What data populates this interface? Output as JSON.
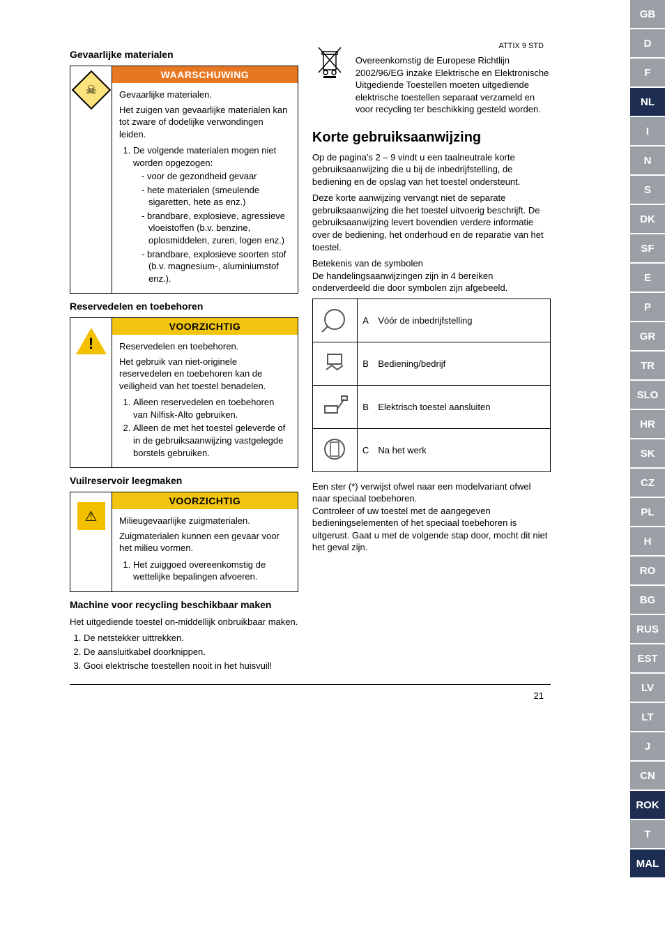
{
  "doc_header": "ATTIX 9 STD",
  "page_number": "21",
  "colors": {
    "warning_header_bg": "#e87722",
    "caution_header_bg": "#f1c40f",
    "caution_header_text": "#000000",
    "lang_inactive_bg": "#9aa0a6",
    "lang_active_bg": "#1d2e52",
    "lang_mal_bg": "#1d2e52",
    "lang_rok_bg": "#1d2e52"
  },
  "left": {
    "sec1_title": "Gevaarlijke materialen",
    "warn1": {
      "header": "WAARSCHUWING",
      "subtitle": "Gevaarlijke materialen.",
      "lead": "Het zuigen van gevaarlijke materialen kan tot zware of dodelijke verwondingen leiden.",
      "item1_intro": "De volgende materialen mogen niet worden opgezogen:",
      "bullets": [
        "voor de gezondheid gevaar",
        "hete materialen (smeulende sigaretten, hete as enz.)",
        "brandbare, explosieve, agressieve vloeistoffen (b.v. benzine, oplosmiddelen, zuren, logen enz.)",
        "brandbare, explosieve soorten stof (b.v. magnesium-, aluminiumstof enz.)."
      ]
    },
    "sec2_title": "Reservedelen en toebehoren",
    "warn2": {
      "header": "VOORZICHTIG",
      "subtitle": "Reservedelen en toebehoren.",
      "lead": "Het gebruik van niet-originele reservedelen en toebehoren kan de veiligheid van het toestel benadelen.",
      "items": [
        "Alleen reservedelen en toebehoren van Nilfisk-Alto gebruiken.",
        "Alleen de met het toestel geleverde of in de gebruiksaanwijzing vastgelegde borstels gebruiken."
      ]
    },
    "sec3_title": "Vuilreservoir leegmaken",
    "warn3": {
      "header": "VOORZICHTIG",
      "subtitle": "Milieugevaarlijke zuigmaterialen.",
      "lead": "Zuigmaterialen kunnen een gevaar voor het milieu vormen.",
      "items": [
        "Het zuiggoed overeenkomstig de wettelijke bepalingen afvoeren."
      ]
    },
    "sec4_title": "Machine voor recycling beschikbaar maken",
    "sec4_lead": "Het uitgediende toestel on-middellijk onbruikbaar maken.",
    "sec4_items": [
      "De netstekker uittrekken.",
      "De aansluitkabel doorknippen.",
      "Gooi elektrische toestellen nooit in het huisvuil!"
    ]
  },
  "right": {
    "weee_text": "Overeenkomstig de Europese Richtlijn 2002/96/EG inzake Elektrische en Elektronische Uitgediende Toestellen moeten uitgediende elektrische toestellen separaat verzameld en voor recycling ter beschikking gesteld worden.",
    "main_title": "Korte gebruiksaanwijzing",
    "p1": "Op de pagina's 2 – 9 vindt u een taalneutrale korte gebruiksaanwijzing die u bij de inbedrijfstelling, de bediening en de opslag van het toestel ondersteunt.",
    "p2": "Deze korte aanwijzing vervangt niet de separate gebruiksaanwijzing die het toestel uitvoerig beschrijft. De gebruiksaanwijzing levert bovendien verdere informatie over de bediening, het onderhoud en de reparatie van het toestel.",
    "p3": "Betekenis van de symbolen",
    "p4": "De handelingsaanwijzingen zijn in 4 bereiken onderverdeeld die door symbolen zijn afgebeeld.",
    "rows": [
      {
        "letter": "A",
        "label": "Vóór de inbedrijfstelling"
      },
      {
        "letter": "B",
        "label": "Bediening/bedrijf"
      },
      {
        "letter": "B",
        "label": "Elektrisch toestel aansluiten"
      },
      {
        "letter": "C",
        "label": "Na het werk"
      }
    ],
    "p5": "Een ster (*) verwijst ofwel naar een modelvariant ofwel naar speciaal toebehoren.",
    "p6": "Controleer of uw toestel met de aangegeven bedieningselementen of het speciaal toebehoren is uitgerust. Gaat u met de volgende stap door, mocht dit niet het geval zijn."
  },
  "langs": [
    {
      "code": "GB",
      "active": false
    },
    {
      "code": "D",
      "active": false
    },
    {
      "code": "F",
      "active": false
    },
    {
      "code": "NL",
      "active": true
    },
    {
      "code": "I",
      "active": false
    },
    {
      "code": "N",
      "active": false
    },
    {
      "code": "S",
      "active": false
    },
    {
      "code": "DK",
      "active": false
    },
    {
      "code": "SF",
      "active": false
    },
    {
      "code": "E",
      "active": false
    },
    {
      "code": "P",
      "active": false
    },
    {
      "code": "GR",
      "active": false
    },
    {
      "code": "TR",
      "active": false
    },
    {
      "code": "SLO",
      "active": false
    },
    {
      "code": "HR",
      "active": false
    },
    {
      "code": "SK",
      "active": false
    },
    {
      "code": "CZ",
      "active": false
    },
    {
      "code": "PL",
      "active": false
    },
    {
      "code": "H",
      "active": false
    },
    {
      "code": "RO",
      "active": false
    },
    {
      "code": "BG",
      "active": false
    },
    {
      "code": "RUS",
      "active": false
    },
    {
      "code": "EST",
      "active": false
    },
    {
      "code": "LV",
      "active": false
    },
    {
      "code": "LT",
      "active": false
    },
    {
      "code": "J",
      "active": false
    },
    {
      "code": "CN",
      "active": false
    },
    {
      "code": "ROK",
      "active": true
    },
    {
      "code": "T",
      "active": false
    },
    {
      "code": "MAL",
      "active": true
    }
  ]
}
